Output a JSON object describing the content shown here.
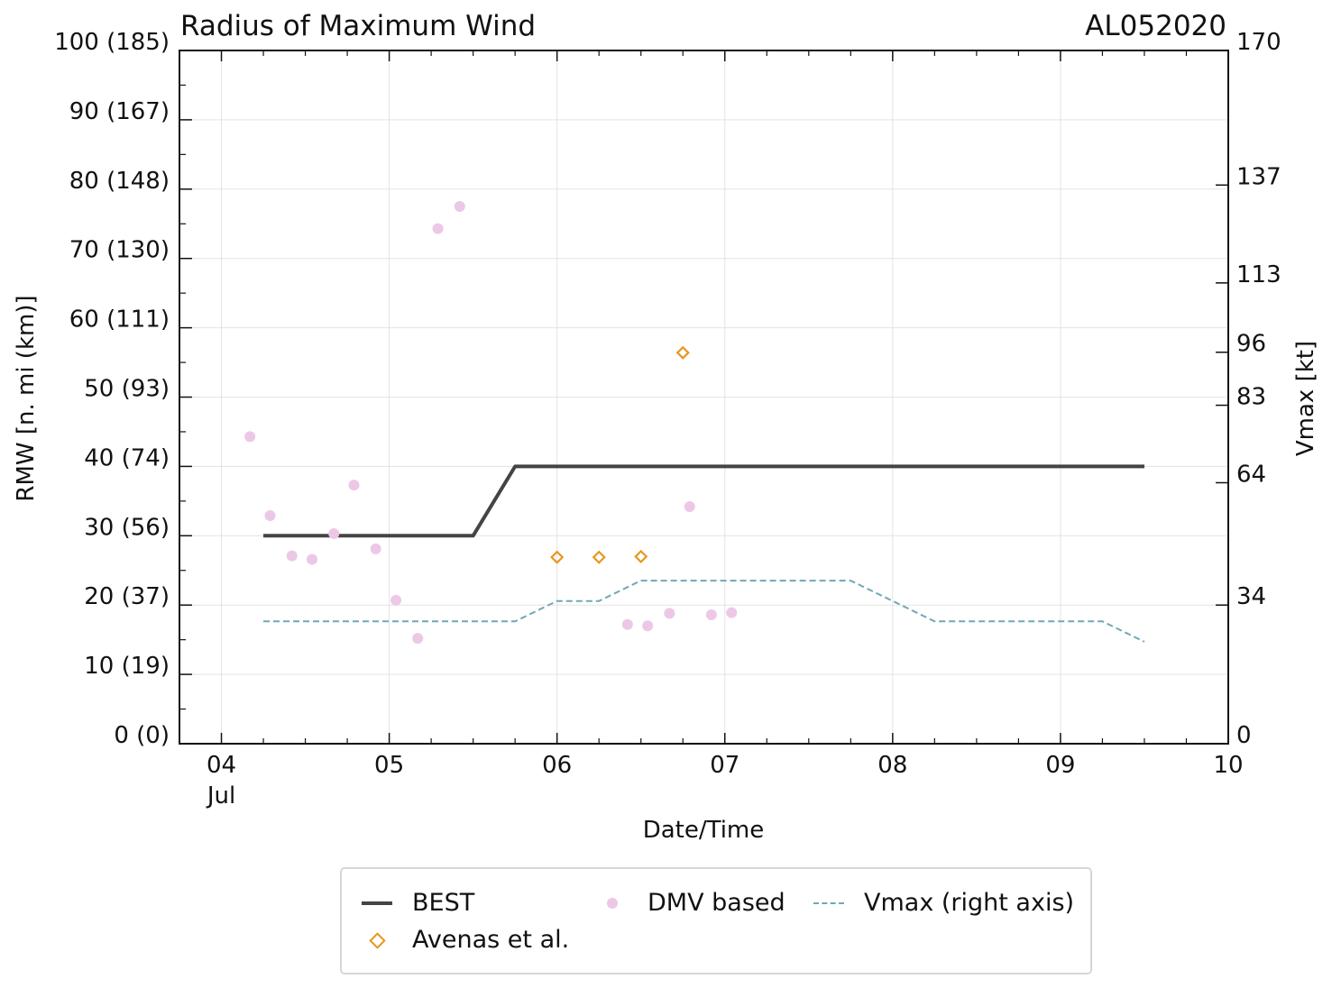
{
  "chart_data": {
    "type": "line",
    "title": "Radius of Maximum Wind",
    "storm_id": "AL052020",
    "xlabel": "Date/Time",
    "ylabel": "RMW [n. mi (km)]",
    "y2label": "Vmax [kt]",
    "x_range_days": [
      3.75,
      10.0
    ],
    "ylim": [
      0,
      100
    ],
    "y2lim": [
      0,
      170
    ],
    "x_ticks": [
      {
        "day": 4,
        "label": "04",
        "sublabel": "Jul"
      },
      {
        "day": 5,
        "label": "05",
        "sublabel": ""
      },
      {
        "day": 6,
        "label": "06",
        "sublabel": ""
      },
      {
        "day": 7,
        "label": "07",
        "sublabel": ""
      },
      {
        "day": 8,
        "label": "08",
        "sublabel": ""
      },
      {
        "day": 9,
        "label": "09",
        "sublabel": ""
      },
      {
        "day": 10,
        "label": "10",
        "sublabel": ""
      }
    ],
    "y_ticks": [
      {
        "value": 0,
        "label": "0 (0)"
      },
      {
        "value": 10,
        "label": "10 (19)"
      },
      {
        "value": 20,
        "label": "20 (37)"
      },
      {
        "value": 30,
        "label": "30 (56)"
      },
      {
        "value": 40,
        "label": "40 (74)"
      },
      {
        "value": 50,
        "label": "50 (93)"
      },
      {
        "value": 60,
        "label": "60 (111)"
      },
      {
        "value": 70,
        "label": "70 (130)"
      },
      {
        "value": 80,
        "label": "80 (148)"
      },
      {
        "value": 90,
        "label": "90 (167)"
      },
      {
        "value": 100,
        "label": "100 (185)"
      }
    ],
    "y2_ticks": [
      {
        "value": 0,
        "label": "0"
      },
      {
        "value": 34,
        "label": "34"
      },
      {
        "value": 64,
        "label": "64"
      },
      {
        "value": 83,
        "label": "83"
      },
      {
        "value": 96,
        "label": "96"
      },
      {
        "value": 113,
        "label": "113"
      },
      {
        "value": 137,
        "label": "137"
      },
      {
        "value": 170,
        "label": "170"
      }
    ],
    "series": [
      {
        "name": "BEST",
        "kind": "line",
        "axis": "left",
        "color": "#444444",
        "points": [
          [
            4.25,
            30
          ],
          [
            5.5,
            30
          ],
          [
            5.75,
            40
          ],
          [
            9.5,
            40
          ]
        ]
      },
      {
        "name": "Avenas et al.",
        "kind": "diamond",
        "axis": "left",
        "color": "#e8961e",
        "points": [
          [
            6.0,
            26.9
          ],
          [
            6.25,
            26.9
          ],
          [
            6.5,
            27.0
          ],
          [
            6.75,
            56.4
          ]
        ]
      },
      {
        "name": "DMV based",
        "kind": "dot",
        "axis": "left",
        "color": "#ecc8e6",
        "points": [
          [
            4.17,
            44.3
          ],
          [
            4.29,
            32.9
          ],
          [
            4.42,
            27.1
          ],
          [
            4.54,
            26.6
          ],
          [
            4.67,
            30.3
          ],
          [
            4.79,
            37.3
          ],
          [
            4.92,
            28.1
          ],
          [
            5.04,
            20.7
          ],
          [
            5.17,
            15.2
          ],
          [
            5.29,
            74.3
          ],
          [
            5.42,
            77.5
          ],
          [
            6.42,
            17.2
          ],
          [
            6.54,
            17.0
          ],
          [
            6.67,
            18.8
          ],
          [
            6.79,
            34.2
          ],
          [
            6.92,
            18.6
          ],
          [
            7.04,
            18.9
          ]
        ]
      },
      {
        "name": "Vmax (right axis)",
        "kind": "dashed",
        "axis": "right",
        "color": "#6fa8b8",
        "points": [
          [
            4.25,
            30
          ],
          [
            5.75,
            30
          ],
          [
            6.0,
            35
          ],
          [
            6.25,
            35
          ],
          [
            6.5,
            40
          ],
          [
            7.75,
            40
          ],
          [
            8.25,
            30
          ],
          [
            9.25,
            30
          ],
          [
            9.5,
            25
          ]
        ]
      }
    ],
    "legend": {
      "placement": "bottom",
      "entries": [
        "BEST",
        "DMV based",
        "Vmax (right axis)",
        "Avenas et al."
      ]
    }
  }
}
